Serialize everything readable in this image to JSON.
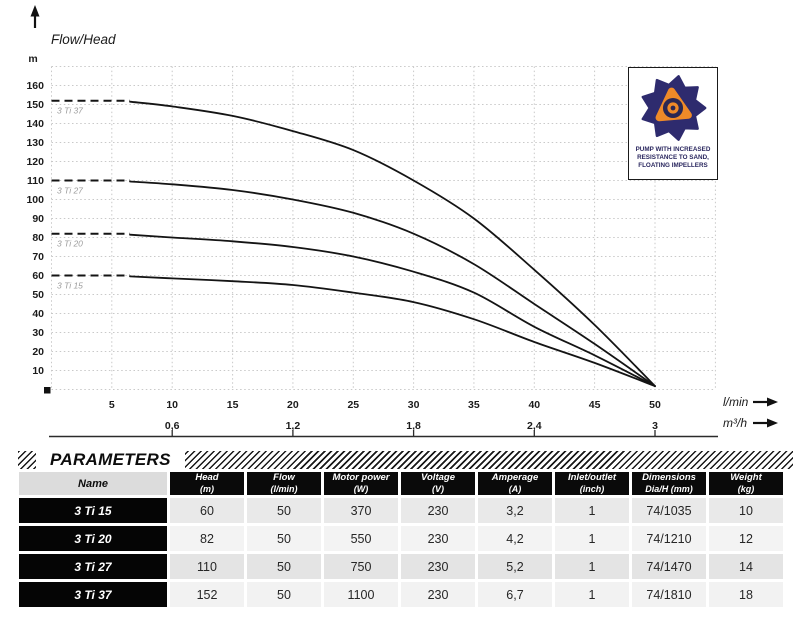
{
  "chart_data": {
    "type": "line",
    "title": "Flow/Head",
    "ylabel": "m",
    "xlabel": "l/min",
    "xlabel2": "m³/h",
    "xlim": [
      0,
      55
    ],
    "ylim": [
      0,
      170
    ],
    "grid": "dotted",
    "legend_position": "left-inline",
    "x_ticks": [
      5,
      10,
      15,
      20,
      25,
      30,
      35,
      40,
      45,
      50
    ],
    "y_ticks": [
      10,
      20,
      30,
      40,
      50,
      60,
      70,
      80,
      90,
      100,
      110,
      120,
      130,
      140,
      150,
      160
    ],
    "x2_ticks": [
      {
        "x": 10,
        "label": "0,6"
      },
      {
        "x": 20,
        "label": "1,2"
      },
      {
        "x": 30,
        "label": "1,8"
      },
      {
        "x": 40,
        "label": "2,4"
      },
      {
        "x": 50,
        "label": "3"
      }
    ],
    "series": [
      {
        "name": "3 Ti 37",
        "dash_to": 6.5,
        "points": [
          [
            0,
            152
          ],
          [
            6.5,
            151.5
          ],
          [
            10,
            149
          ],
          [
            15,
            144
          ],
          [
            20,
            136
          ],
          [
            25,
            126
          ],
          [
            30,
            110
          ],
          [
            35,
            90
          ],
          [
            40,
            63
          ],
          [
            45,
            34
          ],
          [
            50,
            1.8
          ]
        ]
      },
      {
        "name": "3 Ti 27",
        "dash_to": 6.5,
        "points": [
          [
            0,
            110
          ],
          [
            6.5,
            109.5
          ],
          [
            10,
            108
          ],
          [
            15,
            105
          ],
          [
            20,
            100
          ],
          [
            25,
            93
          ],
          [
            30,
            82
          ],
          [
            35,
            66
          ],
          [
            40,
            45
          ],
          [
            45,
            24
          ],
          [
            50,
            1.8
          ]
        ]
      },
      {
        "name": "3 Ti 20",
        "dash_to": 6.5,
        "points": [
          [
            0,
            82
          ],
          [
            6.5,
            81.5
          ],
          [
            10,
            80
          ],
          [
            15,
            78
          ],
          [
            20,
            75
          ],
          [
            25,
            70
          ],
          [
            30,
            62
          ],
          [
            35,
            51
          ],
          [
            40,
            33
          ],
          [
            45,
            18
          ],
          [
            50,
            1.8
          ]
        ]
      },
      {
        "name": "3 Ti 15",
        "dash_to": 6.5,
        "points": [
          [
            0,
            60
          ],
          [
            6.5,
            59.5
          ],
          [
            10,
            58.5
          ],
          [
            15,
            57
          ],
          [
            20,
            55
          ],
          [
            25,
            51
          ],
          [
            30,
            46
          ],
          [
            35,
            37
          ],
          [
            40,
            25
          ],
          [
            45,
            14
          ],
          [
            50,
            1.8
          ]
        ]
      }
    ]
  },
  "badge": {
    "lines": [
      "PUMP WITH INCREASED",
      "RESISTANCE TO SAND,",
      "FLOATING IMPELLERS"
    ]
  },
  "parameters": {
    "title": "PARAMETERS",
    "columns": [
      {
        "label": "Name",
        "unit": ""
      },
      {
        "label": "Head",
        "unit": "(m)"
      },
      {
        "label": "Flow",
        "unit": "(l/min)"
      },
      {
        "label": "Motor power",
        "unit": "(W)"
      },
      {
        "label": "Voltage",
        "unit": "(V)"
      },
      {
        "label": "Amperage",
        "unit": "(A)"
      },
      {
        "label": "Inlet/outlet",
        "unit": "(inch)"
      },
      {
        "label": "Dimensions",
        "unit": "Dia/H (mm)"
      },
      {
        "label": "Weight",
        "unit": "(kg)"
      }
    ],
    "rows": [
      {
        "name": "3 Ti 15",
        "cells": [
          "60",
          "50",
          "370",
          "230",
          "3,2",
          "1",
          "74/1035",
          "10"
        ]
      },
      {
        "name": "3 Ti 20",
        "cells": [
          "82",
          "50",
          "550",
          "230",
          "4,2",
          "1",
          "74/1210",
          "12"
        ]
      },
      {
        "name": "3 Ti 27",
        "cells": [
          "110",
          "50",
          "750",
          "230",
          "5,2",
          "1",
          "74/1470",
          "14"
        ]
      },
      {
        "name": "3 Ti 37",
        "cells": [
          "152",
          "50",
          "1100",
          "230",
          "6,7",
          "1",
          "74/1810",
          "18"
        ]
      }
    ]
  },
  "colors": {
    "navy": "#2e2b6e",
    "orange": "#ef8a28",
    "curve": "#141414"
  }
}
